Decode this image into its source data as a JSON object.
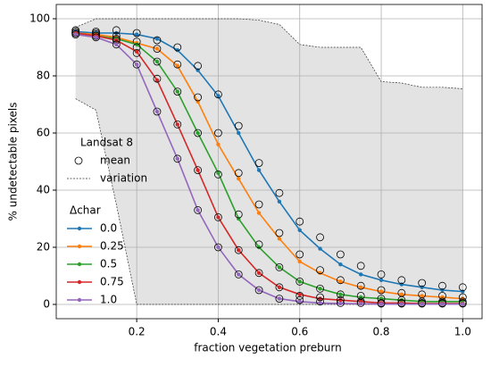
{
  "chart_data": {
    "type": "line",
    "xlabel": "fraction vegetation preburn",
    "ylabel": "% undetectable pixels",
    "x": [
      0.05,
      0.1,
      0.15,
      0.2,
      0.25,
      0.3,
      0.35,
      0.4,
      0.45,
      0.5,
      0.55,
      0.6,
      0.65,
      0.7,
      0.75,
      0.8,
      0.85,
      0.9,
      0.95,
      1.0
    ],
    "xlim": [
      0.0025,
      1.0475
    ],
    "ylim": [
      -5,
      105
    ],
    "xticks": [
      0.2,
      0.4,
      0.6,
      0.8,
      {
        "value": 1,
        "label": "1.0"
      }
    ],
    "yticks": [
      0,
      20,
      40,
      60,
      80,
      100
    ],
    "grid": true,
    "legend": {
      "title": "Landsat 8",
      "mean_label": "mean",
      "variation_label": "variation",
      "series_title": "Δchar"
    },
    "variation": {
      "color": "#e3e3e3",
      "upper": [
        97,
        100,
        100,
        100,
        100,
        100,
        100,
        100,
        100,
        99.5,
        98,
        91,
        90,
        90,
        90,
        78,
        77.5,
        76,
        76,
        75.5
      ],
      "lower": [
        72,
        68,
        35,
        0,
        0,
        0,
        0,
        0,
        0,
        0,
        0,
        0,
        0,
        0,
        0,
        0,
        0,
        0,
        0,
        0
      ]
    },
    "series": [
      {
        "name": "0.0",
        "color": "#1f77b4",
        "values": [
          95.5,
          95,
          95,
          94.5,
          93,
          89,
          82,
          73,
          60,
          47,
          36,
          26,
          19.5,
          14,
          10.5,
          8.5,
          7,
          6,
          5,
          4.5
        ],
        "mean": [
          96,
          95.5,
          96,
          95,
          92.5,
          90,
          83.5,
          73.5,
          62.5,
          49.5,
          39,
          29,
          23.5,
          17.5,
          13.5,
          10.5,
          8.5,
          7.5,
          6.5,
          6
        ]
      },
      {
        "name": "0.25",
        "color": "#ff7f0e",
        "values": [
          95,
          94.5,
          93.5,
          91.5,
          89.5,
          83.5,
          71,
          56,
          44,
          32,
          23,
          15,
          11,
          8,
          6,
          4.5,
          3.5,
          3,
          2.5,
          2
        ],
        "mean": [
          95.5,
          95,
          94,
          92,
          89.5,
          84,
          72.5,
          60,
          46,
          35,
          25,
          17.5,
          12,
          8.5,
          6.5,
          5,
          4,
          3.5,
          3,
          2.5
        ]
      },
      {
        "name": "0.5",
        "color": "#2ca02c",
        "values": [
          95,
          94,
          93,
          91,
          85,
          74.5,
          60,
          46,
          30,
          20,
          13,
          8,
          5.5,
          3.5,
          2.5,
          2,
          1.5,
          1,
          1,
          1
        ],
        "mean": [
          95,
          94.5,
          93,
          90,
          85,
          74.5,
          60,
          45.5,
          31.5,
          21,
          13,
          8,
          5.5,
          3.5,
          3,
          2,
          1.5,
          1,
          1,
          1
        ]
      },
      {
        "name": "0.75",
        "color": "#d62728",
        "values": [
          95,
          94,
          92.5,
          88.5,
          78.5,
          63,
          47,
          30.5,
          19,
          11,
          6,
          3.5,
          2,
          1.5,
          1,
          0.5,
          0.5,
          0.3,
          0.3,
          0.3
        ],
        "mean": [
          95,
          94,
          92.5,
          88,
          79,
          63,
          47,
          30.5,
          19,
          11,
          6,
          3,
          2.5,
          1.5,
          1,
          0.5,
          0.5,
          0.5,
          0.5,
          0.5
        ]
      },
      {
        "name": "1.0",
        "color": "#9467bd",
        "values": [
          94.5,
          93.5,
          91,
          84,
          67.5,
          51,
          33,
          20,
          10.5,
          5,
          2,
          1,
          0.5,
          0.3,
          0.2,
          0.1,
          0.1,
          0.1,
          0.1,
          0.1
        ],
        "mean": [
          94.5,
          93.5,
          91,
          84,
          67.5,
          51,
          33,
          20,
          10.5,
          5,
          2,
          1.5,
          1,
          0.5,
          0.5,
          0.3,
          0.3,
          0.3,
          0.3,
          0.3
        ]
      }
    ]
  }
}
